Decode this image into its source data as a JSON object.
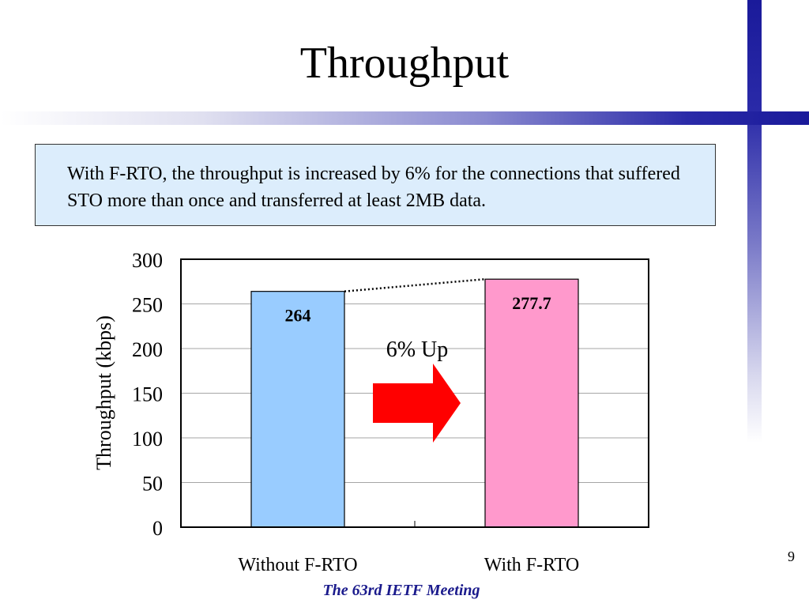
{
  "slide": {
    "title": "Throughput",
    "note": "With F-RTO, the throughput is increased by 6% for the connections that suffered STO more than once and transferred at least 2MB data.",
    "page_number": "9",
    "footer": "The 63rd IETF Meeting"
  },
  "chart_data": {
    "type": "bar",
    "categories": [
      "Without F-RTO",
      "With F-RTO"
    ],
    "values": [
      264,
      277.7
    ],
    "data_labels": [
      "264",
      "277.7"
    ],
    "bar_colors": [
      "#99ccff",
      "#ff99cc"
    ],
    "title": "",
    "xlabel": "",
    "ylabel": "Throughput (kbps)",
    "ylim": [
      0,
      300
    ],
    "yticks": [
      0,
      50,
      100,
      150,
      200,
      250,
      300
    ],
    "grid": true,
    "legend": "none",
    "annotation": {
      "text": "6% Up",
      "arrow_color": "#ff0000",
      "connector": "dotted line between bar tops"
    }
  }
}
